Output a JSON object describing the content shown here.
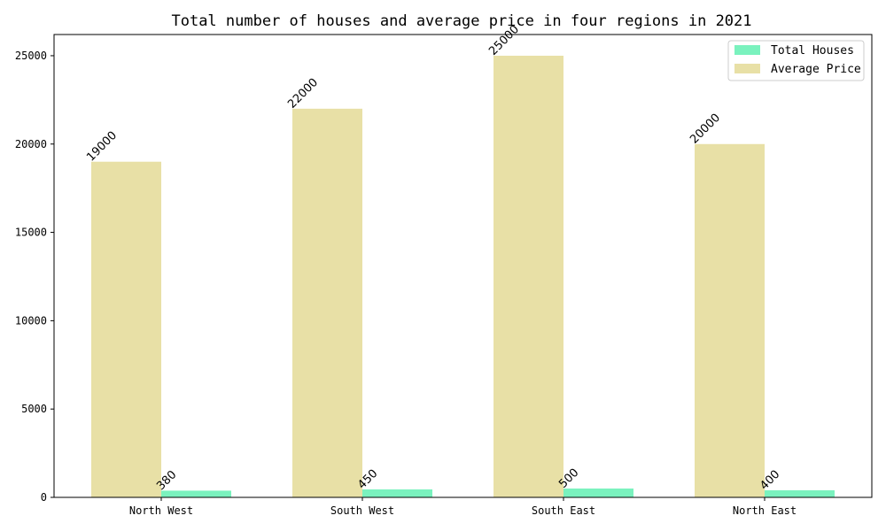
{
  "chart_data": {
    "type": "bar",
    "title": "Total number of houses and average price in four regions in 2021",
    "xlabel": "",
    "ylabel": "",
    "categories": [
      "North West",
      "South West",
      "South East",
      "North East"
    ],
    "series": [
      {
        "name": "Average Price",
        "values": [
          19000,
          22000,
          25000,
          20000
        ],
        "color": "#e8e0a6"
      },
      {
        "name": "Total Houses",
        "values": [
          380,
          450,
          500,
          400
        ],
        "color": "#7af2be"
      }
    ],
    "ylim": [
      0,
      26200
    ],
    "yticks": [
      0,
      5000,
      10000,
      15000,
      20000,
      25000
    ],
    "grid": false,
    "legend": {
      "position": "top-right",
      "entries": [
        {
          "label": "Total Houses",
          "color": "#7af2be"
        },
        {
          "label": "Average Price",
          "color": "#e8e0a6"
        }
      ]
    }
  }
}
